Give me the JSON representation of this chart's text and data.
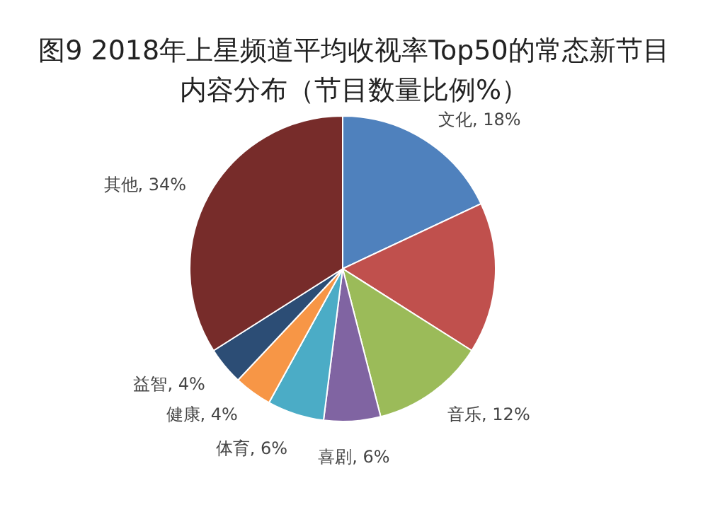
{
  "chart_data": {
    "type": "pie",
    "title": "图9 2018年上星频道平均收视率Top50的常态新节目内容分布（节目数量比例%）",
    "categories": [
      "文化",
      null,
      "音乐",
      "喜剧",
      "体育",
      "健康",
      "益智",
      "其他"
    ],
    "values": [
      18,
      16,
      12,
      6,
      6,
      4,
      4,
      34
    ],
    "value_labels": [
      "18%",
      null,
      "12%",
      "6%",
      "6%",
      "4%",
      "4%",
      "34%"
    ],
    "colors": [
      "#4f81bd",
      "#c0504d",
      "#9bbb59",
      "#8064a2",
      "#4bacc6",
      "#f79646",
      "#2c4d75",
      "#772c2a"
    ],
    "legend": false
  }
}
